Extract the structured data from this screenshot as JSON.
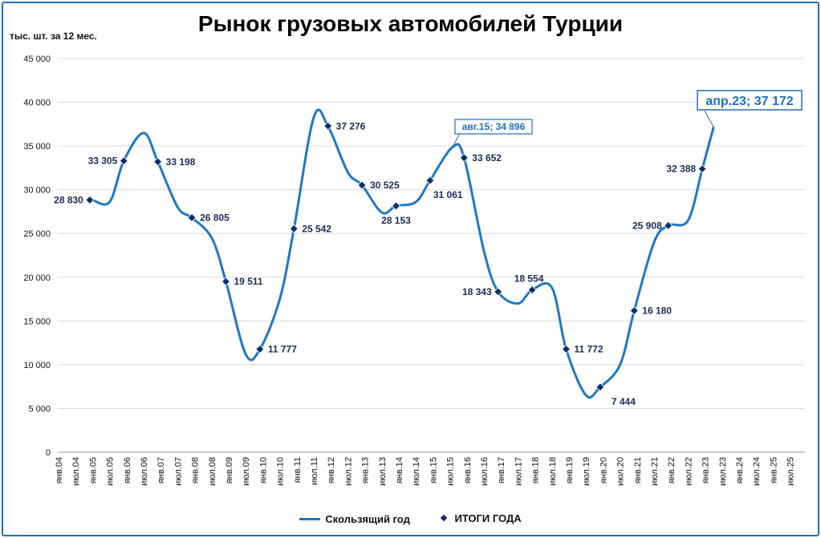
{
  "title": "Рынок грузовых автомобилей Турции",
  "ylabel": "тыс. шт. за 12 мес.",
  "legend": {
    "line": "Скользящий год",
    "points": "ИТОГИ ГОДА"
  },
  "colors": {
    "line": "#1f77c4",
    "points": "#0c2d6b",
    "label": "#1b2c55",
    "callout": "#1f6fbf",
    "grid": "#d9d9d9",
    "frame": "#1f6fbf"
  },
  "chart_data": {
    "type": "line",
    "ylim": [
      0,
      45000
    ],
    "y_ticks": [
      0,
      5000,
      10000,
      15000,
      20000,
      25000,
      30000,
      35000,
      40000,
      45000
    ],
    "y_tick_labels": [
      "0",
      "5 000",
      "10 000",
      "15 000",
      "20 000",
      "25 000",
      "30 000",
      "35 000",
      "40 000",
      "45 000"
    ],
    "x_tick_labels": [
      "янв.04",
      "июл.04",
      "янв.05",
      "июл.05",
      "янв.06",
      "июл.06",
      "янв.07",
      "июл.07",
      "янв.08",
      "июл.08",
      "янв.09",
      "июл.09",
      "янв.10",
      "июл.10",
      "янв.11",
      "июл.11",
      "янв.12",
      "июл.12",
      "янв.13",
      "июл.13",
      "янв.14",
      "июл.14",
      "янв.15",
      "июл.15",
      "янв.16",
      "июл.16",
      "янв.17",
      "июл.17",
      "янв.18",
      "июл.18",
      "янв.19",
      "июл.19",
      "янв.20",
      "июл.20",
      "янв.21",
      "июл.21",
      "янв.22",
      "июл.22",
      "янв.23",
      "июл.23",
      "янв.24",
      "июл.24",
      "янв.25",
      "июл.25"
    ],
    "grid": true,
    "legend_position": "bottom",
    "series": [
      {
        "name": "Скользящий год",
        "points": [
          [
            "янв.05",
            28830
          ],
          [
            "июл.05",
            28600
          ],
          [
            "дек.05",
            33305
          ],
          [
            "июл.06",
            36500
          ],
          [
            "дек.06",
            33198
          ],
          [
            "июл.07",
            28000
          ],
          [
            "дек.07",
            26805
          ],
          [
            "июл.08",
            24500
          ],
          [
            "дек.08",
            19511
          ],
          [
            "июл.09",
            11200
          ],
          [
            "дек.09",
            11777
          ],
          [
            "июл.10",
            17500
          ],
          [
            "дек.10",
            25542
          ],
          [
            "июл.11",
            38300
          ],
          [
            "дек.11",
            37276
          ],
          [
            "июл.12",
            32000
          ],
          [
            "дек.12",
            30525
          ],
          [
            "июл.13",
            27400
          ],
          [
            "дек.13",
            28153
          ],
          [
            "июл.14",
            28600
          ],
          [
            "дек.14",
            31061
          ],
          [
            "авг.15",
            34896
          ],
          [
            "дек.15",
            33652
          ],
          [
            "июл.16",
            23000
          ],
          [
            "дек.16",
            18343
          ],
          [
            "июл.17",
            17000
          ],
          [
            "дек.17",
            18554
          ],
          [
            "июл.18",
            18800
          ],
          [
            "дек.18",
            11772
          ],
          [
            "июл.19",
            6500
          ],
          [
            "дек.19",
            7444
          ],
          [
            "июл.20",
            10000
          ],
          [
            "дек.20",
            16180
          ],
          [
            "июл.21",
            24000
          ],
          [
            "дек.21",
            25908
          ],
          [
            "июл.22",
            26500
          ],
          [
            "дек.22",
            32388
          ],
          [
            "апр.23",
            37172
          ]
        ]
      },
      {
        "name": "ИТОГИ ГОДА",
        "points": [
          [
            "дек.04",
            28830,
            "28 830"
          ],
          [
            "дек.05",
            33305,
            "33 305"
          ],
          [
            "дек.06",
            33198,
            "33 198"
          ],
          [
            "дек.07",
            26805,
            "26 805"
          ],
          [
            "дек.08",
            19511,
            "19 511"
          ],
          [
            "дек.09",
            11777,
            "11 777"
          ],
          [
            "дек.10",
            25542,
            "25 542"
          ],
          [
            "дек.11",
            37276,
            "37 276"
          ],
          [
            "дек.12",
            30525,
            "30 525"
          ],
          [
            "дек.13",
            28153,
            "28 153"
          ],
          [
            "дек.14",
            31061,
            "31 061"
          ],
          [
            "дек.15",
            33652,
            "33 652"
          ],
          [
            "дек.16",
            18343,
            "18 343"
          ],
          [
            "дек.17",
            18554,
            "18 554"
          ],
          [
            "дек.18",
            11772,
            "11 772"
          ],
          [
            "дек.19",
            7444,
            "7 444"
          ],
          [
            "дек.20",
            16180,
            "16 180"
          ],
          [
            "дек.21",
            25908,
            "25 908"
          ],
          [
            "дек.22",
            32388,
            "32 388"
          ]
        ]
      }
    ],
    "callouts": [
      {
        "text": "авг.15; 34 896",
        "x": "авг.15",
        "y": 34896
      },
      {
        "text": "апр.23; 37 172",
        "x": "апр.23",
        "y": 37172
      }
    ]
  }
}
